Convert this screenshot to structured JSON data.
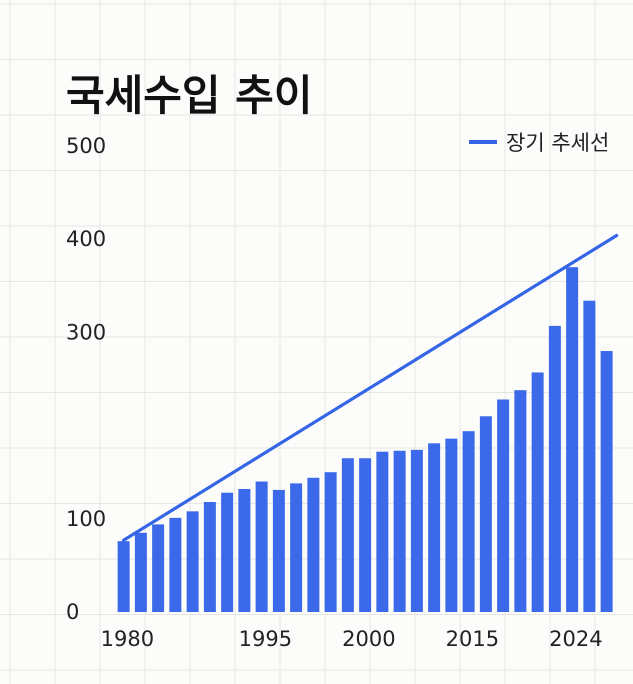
{
  "chart_data": {
    "type": "bar",
    "title": "국세수입 추이",
    "xlabel": "",
    "ylabel": "",
    "ylim": [
      0,
      500
    ],
    "yticks": [
      {
        "value": 500,
        "label": "500"
      },
      {
        "value": 400,
        "label": "400"
      },
      {
        "value": 300,
        "label": "300"
      },
      {
        "value": 100,
        "label": "100"
      },
      {
        "value": 0,
        "label": "0"
      }
    ],
    "xticks": [
      {
        "index": 0,
        "label": "1980"
      },
      {
        "index": 8,
        "label": "1995"
      },
      {
        "index": 14,
        "label": "2000"
      },
      {
        "index": 20,
        "label": "2015"
      },
      {
        "index": 26,
        "label": "2024"
      }
    ],
    "grid": true,
    "legend": {
      "position": "top-right",
      "label": "장기 추세선"
    },
    "colors": {
      "bar": "#3b69ea",
      "trend": "#3465e6"
    },
    "values": [
      76,
      85,
      94,
      101,
      108,
      118,
      128,
      132,
      140,
      131,
      138,
      144,
      150,
      165,
      165,
      172,
      173,
      174,
      181,
      186,
      194,
      210,
      228,
      238,
      257,
      307,
      370,
      334,
      280
    ],
    "trend": {
      "start": {
        "index": 0,
        "value": 77
      },
      "end": {
        "index": 28,
        "value": 404
      }
    }
  }
}
